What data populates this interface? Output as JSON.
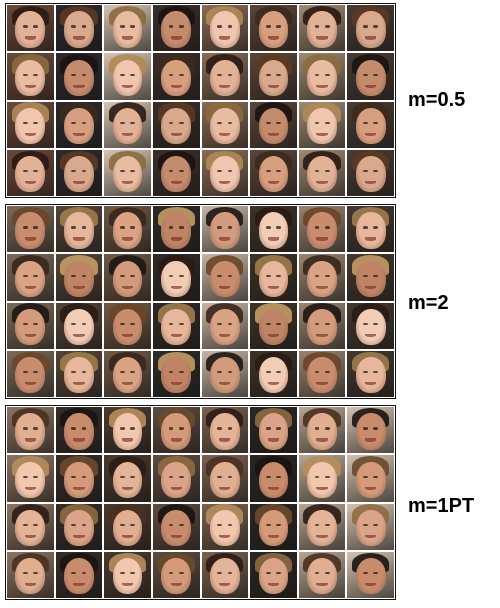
{
  "figure": {
    "panels": [
      {
        "label": "m=0.5",
        "rows": 4,
        "cols": 8,
        "palette": {
          "bg": [
            "#6b4a3a",
            "#3a2e2a",
            "#a08a74",
            "#2c2a30",
            "#8a6c56",
            "#4a3c34",
            "#d6c4b2",
            "#5a4638"
          ],
          "skin": [
            "#e2b296",
            "#d79f80",
            "#f0c7ae",
            "#c48b6c",
            "#e8bca0",
            "#d8a98c"
          ],
          "hair": [
            "#2b1a12",
            "#5c3a22",
            "#8c6a3e",
            "#1c1412",
            "#b08a58",
            "#3c2a1e"
          ]
        }
      },
      {
        "label": "m=2",
        "rows": 4,
        "cols": 8,
        "palette": {
          "bg": [
            "#3c3428",
            "#7a6a58",
            "#2e2a28",
            "#9a8470",
            "#554538",
            "#c6b6a6",
            "#443830",
            "#6e5a48"
          ],
          "skin": [
            "#d9a384",
            "#e6b79a",
            "#c98d6e",
            "#f2cdb6",
            "#d29c7c",
            "#bf8466"
          ],
          "hair": [
            "#2a1c14",
            "#6a4628",
            "#a07c4c",
            "#3a261a",
            "#c49c66",
            "#1e1612"
          ]
        }
      },
      {
        "label": "m=1PT",
        "rows": 4,
        "cols": 8,
        "palette": {
          "bg": [
            "#4a3a30",
            "#2a2624",
            "#8c7462",
            "#5e4c40",
            "#b8a694",
            "#362c26",
            "#7a6250",
            "#d4c2b0"
          ],
          "skin": [
            "#e4b498",
            "#d49a7a",
            "#f1c8ae",
            "#c88c6c",
            "#e0ae90",
            "#dba488"
          ],
          "hair": [
            "#2c1c14",
            "#8e6a42",
            "#4a3020",
            "#1a1412",
            "#b68e5c",
            "#6c4a2e"
          ]
        }
      }
    ]
  }
}
